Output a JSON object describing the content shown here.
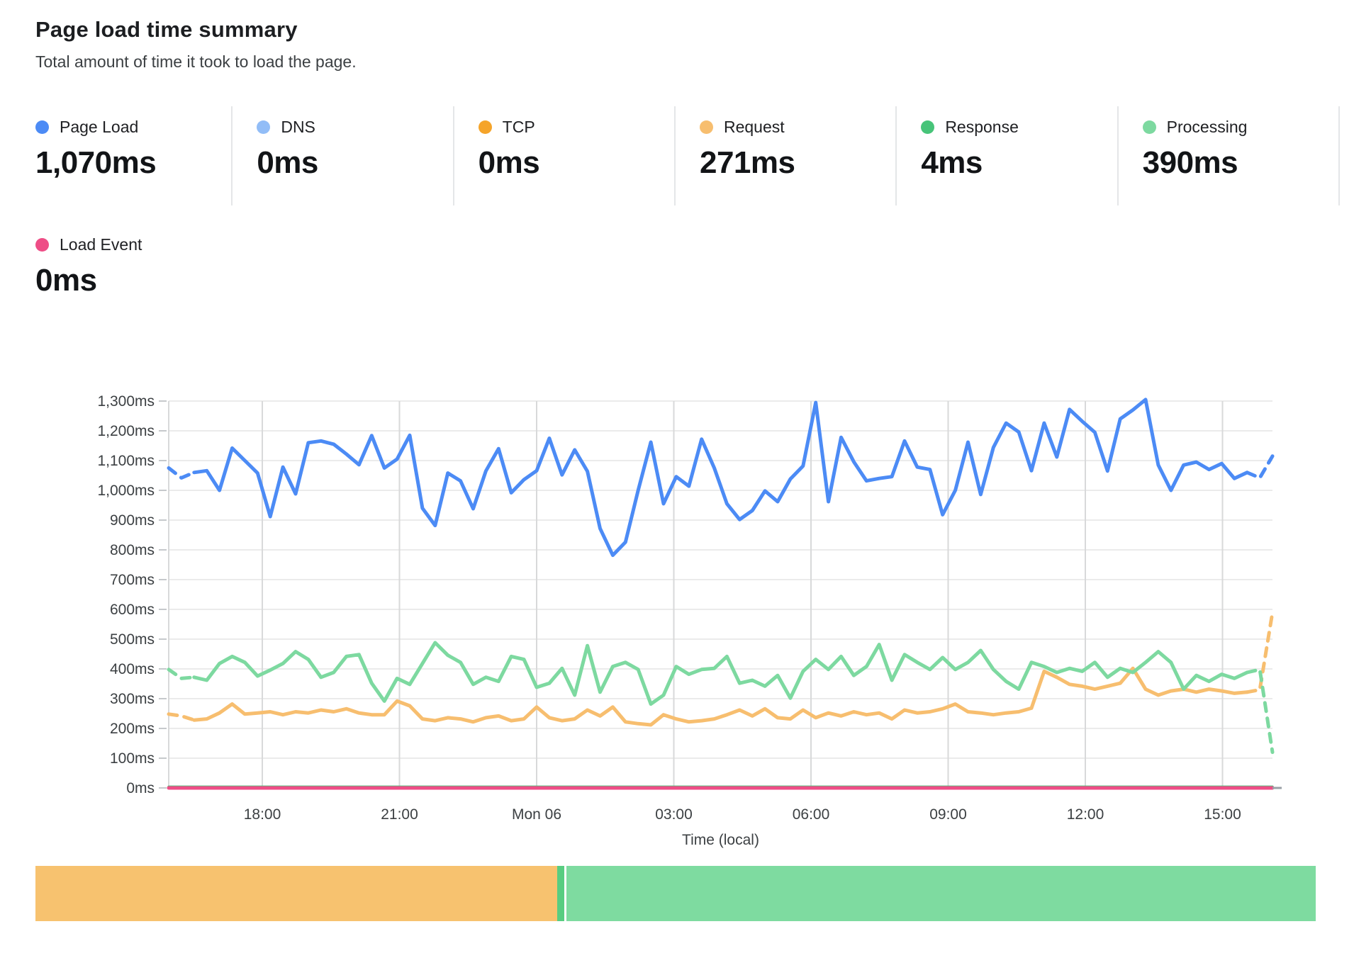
{
  "header": {
    "title": "Page load time summary",
    "subtitle": "Total amount of time it took to load the page."
  },
  "stats": [
    {
      "label": "Page Load",
      "value": "1,070ms",
      "color": "#4C8BF5"
    },
    {
      "label": "DNS",
      "value": "0ms",
      "color": "#92BDF7"
    },
    {
      "label": "TCP",
      "value": "0ms",
      "color": "#F5A42A"
    },
    {
      "label": "Request",
      "value": "271ms",
      "color": "#F7BE6F"
    },
    {
      "label": "Response",
      "value": "4ms",
      "color": "#47C479"
    },
    {
      "label": "Processing",
      "value": "390ms",
      "color": "#7DD9A0"
    }
  ],
  "load_event_stat": {
    "label": "Load Event",
    "value": "0ms",
    "color": "#EE4D86"
  },
  "chart_data": {
    "type": "line",
    "title": "Page load time summary",
    "xlabel": "Time (local)",
    "ylabel": "",
    "ylim": [
      0,
      1300
    ],
    "grid": true,
    "legend_position": "top",
    "x_ticks": [
      "18:00",
      "21:00",
      "Mon 06",
      "03:00",
      "06:00",
      "09:00",
      "12:00",
      "15:00"
    ],
    "y_tick_labels": [
      "0ms",
      "100ms",
      "200ms",
      "300ms",
      "400ms",
      "500ms",
      "600ms",
      "700ms",
      "800ms",
      "900ms",
      "1,000ms",
      "1,100ms",
      "1,200ms",
      "1,300ms"
    ],
    "series": [
      {
        "name": "Response",
        "color": "#47C479",
        "flat": true,
        "value": 4,
        "width": 3.5
      },
      {
        "name": "Request",
        "color": "#F7BE6F",
        "width": 5,
        "values": [
          248,
          242,
          228,
          232,
          252,
          282,
          248,
          252,
          256,
          246,
          256,
          252,
          262,
          256,
          266,
          252,
          246,
          246,
          292,
          276,
          232,
          226,
          236,
          232,
          222,
          236,
          242,
          226,
          232,
          272,
          236,
          226,
          232,
          262,
          242,
          272,
          222,
          216,
          212,
          246,
          232,
          222,
          226,
          232,
          246,
          262,
          242,
          266,
          236,
          232,
          262,
          236,
          252,
          242,
          256,
          246,
          252,
          232,
          262,
          252,
          256,
          266,
          282,
          256,
          252,
          246,
          252,
          256,
          268,
          392,
          372,
          348,
          342,
          332,
          342,
          352,
          402,
          332,
          312,
          326,
          332,
          322,
          332,
          326,
          318,
          322,
          330,
          590
        ]
      },
      {
        "name": "Processing",
        "color": "#7DD9A0",
        "width": 5,
        "values": [
          398,
          368,
          372,
          362,
          418,
          442,
          422,
          376,
          396,
          418,
          458,
          432,
          372,
          388,
          442,
          448,
          352,
          292,
          368,
          348,
          418,
          488,
          446,
          422,
          348,
          372,
          358,
          442,
          432,
          338,
          352,
          402,
          312,
          478,
          322,
          408,
          422,
          398,
          282,
          312,
          408,
          382,
          398,
          402,
          442,
          352,
          362,
          342,
          378,
          302,
          392,
          432,
          398,
          442,
          378,
          408,
          482,
          362,
          448,
          422,
          398,
          438,
          398,
          422,
          462,
          398,
          358,
          332,
          422,
          408,
          388,
          402,
          392,
          422,
          372,
          402,
          388,
          422,
          458,
          422,
          332,
          378,
          358,
          382,
          368,
          388,
          398,
          120
        ]
      },
      {
        "name": "Page Load",
        "color": "#4C8BF5",
        "width": 5,
        "values": [
          1075,
          1042,
          1060,
          1066,
          1000,
          1142,
          1100,
          1058,
          912,
          1078,
          988,
          1160,
          1166,
          1155,
          1122,
          1086,
          1184,
          1075,
          1105,
          1185,
          940,
          882,
          1058,
          1032,
          938,
          1065,
          1140,
          992,
          1036,
          1066,
          1175,
          1052,
          1136,
          1064,
          872,
          782,
          826,
          1000,
          1162,
          955,
          1046,
          1014,
          1172,
          1075,
          955,
          902,
          932,
          998,
          962,
          1038,
          1082,
          1295,
          962,
          1178,
          1096,
          1032,
          1040,
          1046,
          1166,
          1078,
          1070,
          918,
          1000,
          1162,
          986,
          1144,
          1226,
          1196,
          1066,
          1226,
          1112,
          1272,
          1232,
          1195,
          1065,
          1240,
          1270,
          1305,
          1085,
          1000,
          1085,
          1095,
          1070,
          1090,
          1040,
          1060,
          1042,
          1115
        ]
      },
      {
        "name": "Load Event",
        "color": "#EE4D86",
        "flat": true,
        "value": 0,
        "width": 5
      }
    ]
  },
  "timeline_bar": {
    "segments": [
      {
        "name": "segment-orange",
        "color": "#F7C26F",
        "pct": 40.73,
        "gap_after": false
      },
      {
        "name": "segment-green-dark",
        "color": "#58CD81",
        "pct": 0.55,
        "gap_after": true
      },
      {
        "name": "segment-green",
        "color": "#7EDBA0",
        "pct": 58.55,
        "gap_after": false
      }
    ]
  }
}
